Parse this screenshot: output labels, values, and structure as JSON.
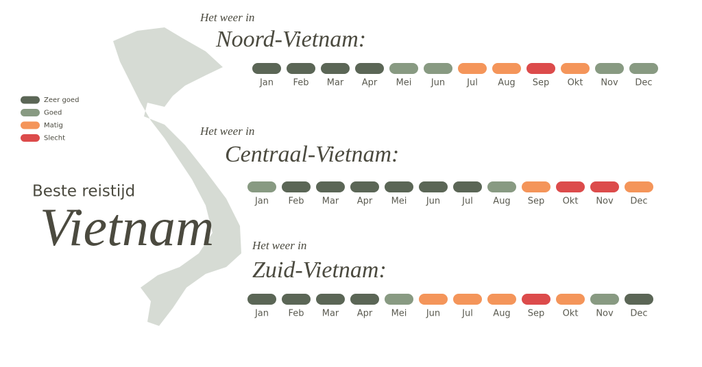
{
  "legend": [
    {
      "name": "Zeer goed",
      "color": "#5b6656"
    },
    {
      "name": "Goed",
      "color": "#889a82"
    },
    {
      "name": "Matig",
      "color": "#f4955a"
    },
    {
      "name": "Slecht",
      "color": "#dc4b4b"
    }
  ],
  "title": {
    "line1": "Beste reistijd",
    "line2": "Vietnam"
  },
  "regions": [
    {
      "prefix": "Het weer in",
      "name": "Noord-Vietnam:",
      "months": [
        {
          "month": "Jan",
          "rating": "Zeer goed"
        },
        {
          "month": "Feb",
          "rating": "Zeer goed"
        },
        {
          "month": "Mar",
          "rating": "Zeer goed"
        },
        {
          "month": "Apr",
          "rating": "Zeer goed"
        },
        {
          "month": "Mei",
          "rating": "Goed"
        },
        {
          "month": "Jun",
          "rating": "Goed"
        },
        {
          "month": "Jul",
          "rating": "Matig"
        },
        {
          "month": "Aug",
          "rating": "Matig"
        },
        {
          "month": "Sep",
          "rating": "Slecht"
        },
        {
          "month": "Okt",
          "rating": "Matig"
        },
        {
          "month": "Nov",
          "rating": "Goed"
        },
        {
          "month": "Dec",
          "rating": "Goed"
        }
      ]
    },
    {
      "prefix": "Het weer in",
      "name": "Centraal-Vietnam:",
      "months": [
        {
          "month": "Jan",
          "rating": "Goed"
        },
        {
          "month": "Feb",
          "rating": "Zeer goed"
        },
        {
          "month": "Mar",
          "rating": "Zeer goed"
        },
        {
          "month": "Apr",
          "rating": "Zeer goed"
        },
        {
          "month": "Mei",
          "rating": "Zeer goed"
        },
        {
          "month": "Jun",
          "rating": "Zeer goed"
        },
        {
          "month": "Jul",
          "rating": "Zeer goed"
        },
        {
          "month": "Aug",
          "rating": "Goed"
        },
        {
          "month": "Sep",
          "rating": "Matig"
        },
        {
          "month": "Okt",
          "rating": "Slecht"
        },
        {
          "month": "Nov",
          "rating": "Slecht"
        },
        {
          "month": "Dec",
          "rating": "Matig"
        }
      ]
    },
    {
      "prefix": "Het weer in",
      "name": "Zuid-Vietnam:",
      "months": [
        {
          "month": "Jan",
          "rating": "Zeer goed"
        },
        {
          "month": "Feb",
          "rating": "Zeer goed"
        },
        {
          "month": "Mar",
          "rating": "Zeer goed"
        },
        {
          "month": "Apr",
          "rating": "Zeer goed"
        },
        {
          "month": "Mei",
          "rating": "Goed"
        },
        {
          "month": "Jun",
          "rating": "Matig"
        },
        {
          "month": "Jul",
          "rating": "Matig"
        },
        {
          "month": "Aug",
          "rating": "Matig"
        },
        {
          "month": "Sep",
          "rating": "Slecht"
        },
        {
          "month": "Okt",
          "rating": "Matig"
        },
        {
          "month": "Nov",
          "rating": "Goed"
        },
        {
          "month": "Dec",
          "rating": "Zeer goed"
        }
      ]
    }
  ]
}
